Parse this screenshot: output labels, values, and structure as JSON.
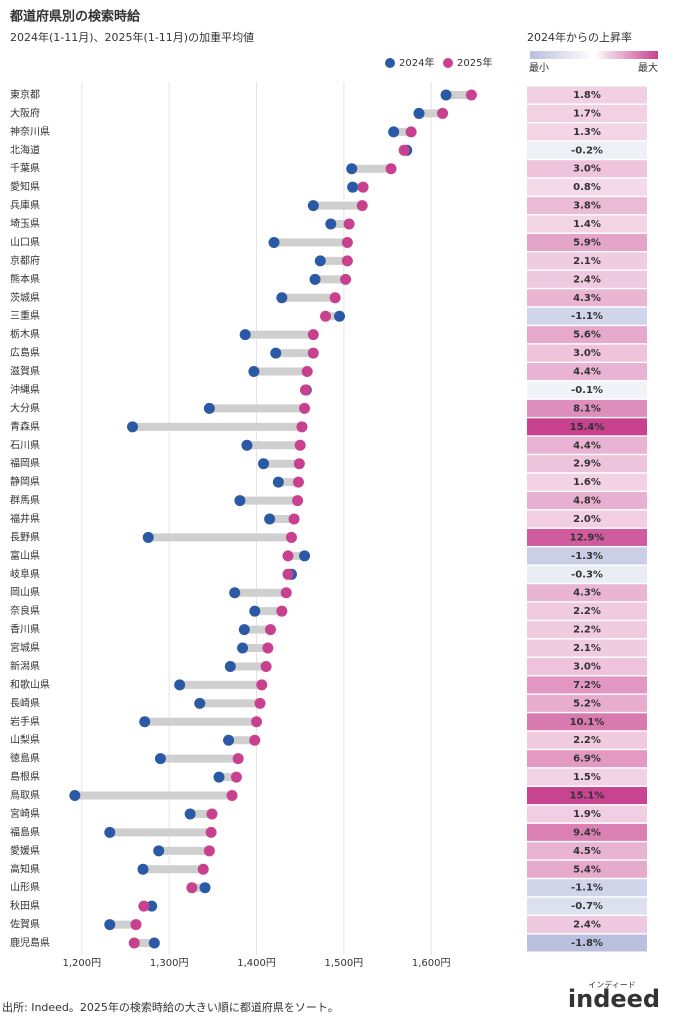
{
  "chart_data": {
    "type": "dumbbell",
    "title": "都道府県別の検索時給",
    "subtitle": "2024年(1-11月)、2025年(1-11月)の加重平均値",
    "categories": [
      "東京都",
      "大阪府",
      "神奈川県",
      "北海道",
      "千葉県",
      "愛知県",
      "兵庫県",
      "埼玉県",
      "山口県",
      "京都府",
      "熊本県",
      "茨城県",
      "三重県",
      "栃木県",
      "広島県",
      "滋賀県",
      "沖縄県",
      "大分県",
      "青森県",
      "石川県",
      "福岡県",
      "静岡県",
      "群馬県",
      "福井県",
      "長野県",
      "富山県",
      "岐阜県",
      "岡山県",
      "奈良県",
      "香川県",
      "宮城県",
      "新潟県",
      "和歌山県",
      "長崎県",
      "岩手県",
      "山梨県",
      "徳島県",
      "島根県",
      "鳥取県",
      "宮崎県",
      "福島県",
      "愛媛県",
      "高知県",
      "山形県",
      "秋田県",
      "佐賀県",
      "鹿児島県"
    ],
    "series": [
      {
        "name": "2024年",
        "color": "#2a59a6",
        "values": [
          1617,
          1586,
          1557,
          1572,
          1509,
          1510,
          1465,
          1485,
          1420,
          1473,
          1467,
          1429,
          1495,
          1387,
          1422,
          1397,
          1457,
          1346,
          1258,
          1389,
          1408,
          1425,
          1381,
          1415,
          1276,
          1455,
          1440,
          1375,
          1398,
          1386,
          1384,
          1370,
          1312,
          1335,
          1272,
          1368,
          1290,
          1357,
          1192,
          1324,
          1232,
          1288,
          1270,
          1341,
          1280,
          1232,
          1283
        ]
      },
      {
        "name": "2025年",
        "color": "#c8418e",
        "values": [
          1646,
          1613,
          1577,
          1569,
          1554,
          1522,
          1521,
          1506,
          1504,
          1504,
          1502,
          1490,
          1479,
          1465,
          1465,
          1458,
          1456,
          1455,
          1452,
          1450,
          1449,
          1448,
          1447,
          1443,
          1440,
          1436,
          1436,
          1434,
          1429,
          1416,
          1413,
          1411,
          1406,
          1404,
          1400,
          1398,
          1379,
          1377,
          1372,
          1349,
          1348,
          1346,
          1339,
          1326,
          1271,
          1262,
          1260
        ]
      }
    ],
    "connector_color": "#cfcfcf",
    "xlim": [
      1175,
      1665
    ],
    "xticks": [
      {
        "value": 1200,
        "label": "1,200円"
      },
      {
        "value": 1300,
        "label": "1,300円"
      },
      {
        "value": 1400,
        "label": "1,400円"
      },
      {
        "value": 1500,
        "label": "1,500円"
      },
      {
        "value": 1600,
        "label": "1,600円"
      }
    ],
    "grid": true,
    "change": {
      "title": "2024年からの上昇率",
      "scale_labels": [
        "最小",
        "最大"
      ],
      "values": [
        1.8,
        1.7,
        1.3,
        -0.2,
        3.0,
        0.8,
        3.8,
        1.4,
        5.9,
        2.1,
        2.4,
        4.3,
        -1.1,
        5.6,
        3.0,
        4.4,
        -0.1,
        8.1,
        15.4,
        4.4,
        2.9,
        1.6,
        4.8,
        2.0,
        12.9,
        -1.3,
        -0.3,
        4.3,
        2.2,
        2.2,
        2.1,
        3.0,
        7.2,
        5.2,
        10.1,
        2.2,
        6.9,
        1.5,
        15.1,
        1.9,
        9.4,
        4.5,
        5.4,
        -1.1,
        -0.7,
        2.4,
        -1.8
      ],
      "value_labels": [
        "1.8%",
        "1.7%",
        "1.3%",
        "-0.2%",
        "3.0%",
        "0.8%",
        "3.8%",
        "1.4%",
        "5.9%",
        "2.1%",
        "2.4%",
        "4.3%",
        "-1.1%",
        "5.6%",
        "3.0%",
        "4.4%",
        "-0.1%",
        "8.1%",
        "15.4%",
        "4.4%",
        "2.9%",
        "1.6%",
        "4.8%",
        "2.0%",
        "12.9%",
        "-1.3%",
        "-0.3%",
        "4.3%",
        "2.2%",
        "2.2%",
        "2.1%",
        "3.0%",
        "7.2%",
        "5.2%",
        "10.1%",
        "2.2%",
        "6.9%",
        "1.5%",
        "15.1%",
        "1.9%",
        "9.4%",
        "4.5%",
        "5.4%",
        "-1.1%",
        "-0.7%",
        "2.4%",
        "-1.8%"
      ],
      "min_color": "#b9c0de",
      "max_color": "#c8418e"
    }
  },
  "source": "出所: Indeed。2025年の検索時給の大きい順に都道府県をソート。",
  "logo": {
    "text": "indeed",
    "kana": "インディード"
  }
}
